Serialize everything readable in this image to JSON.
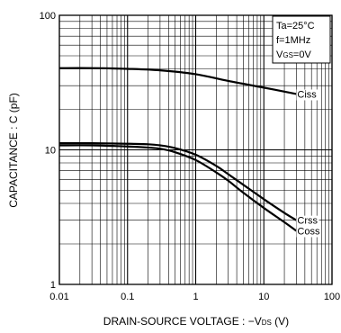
{
  "chart_data": {
    "type": "line",
    "xlabel": "DRAIN-SOURCE VOLTAGE : −V",
    "xlabel_sub": "DS",
    "xlabel_unit": " (V)",
    "ylabel": "CAPACITANCE : C (pF)",
    "x_scale": "log",
    "y_scale": "log",
    "xlim": [
      0.01,
      100
    ],
    "ylim": [
      1,
      100
    ],
    "x_ticks": [
      {
        "value": 0.01,
        "label": "0.01"
      },
      {
        "value": 0.1,
        "label": "0.1"
      },
      {
        "value": 1,
        "label": "1"
      },
      {
        "value": 10,
        "label": "10"
      },
      {
        "value": 100,
        "label": "100"
      }
    ],
    "y_ticks": [
      {
        "value": 1,
        "label": "1"
      },
      {
        "value": 10,
        "label": "10"
      },
      {
        "value": 100,
        "label": "100"
      }
    ],
    "grid": true,
    "conditions": {
      "ta": "Ta=25°C",
      "f": "f=1MHz",
      "vgs_main": "V",
      "vgs_sub": "GS",
      "vgs_tail": "=0V"
    },
    "series": [
      {
        "name": "Ciss",
        "x": [
          0.01,
          0.03,
          0.1,
          0.3,
          1,
          3,
          10,
          30
        ],
        "y": [
          40.5,
          40.5,
          40,
          39,
          36.5,
          32.5,
          29,
          26
        ]
      },
      {
        "name": "Crss",
        "x": [
          0.01,
          0.03,
          0.1,
          0.2,
          0.3,
          0.5,
          1,
          2,
          3,
          5,
          10,
          20,
          30
        ],
        "y": [
          11.2,
          11.2,
          11.1,
          11.0,
          10.8,
          10.3,
          9.2,
          7.6,
          6.6,
          5.5,
          4.3,
          3.4,
          3.0
        ]
      },
      {
        "name": "Coss",
        "x": [
          0.01,
          0.03,
          0.1,
          0.2,
          0.3,
          0.5,
          1,
          2,
          3,
          5,
          10,
          20,
          30
        ],
        "y": [
          10.8,
          10.8,
          10.6,
          10.4,
          10.2,
          9.6,
          8.4,
          6.8,
          5.9,
          4.8,
          3.7,
          2.9,
          2.5
        ]
      }
    ]
  }
}
